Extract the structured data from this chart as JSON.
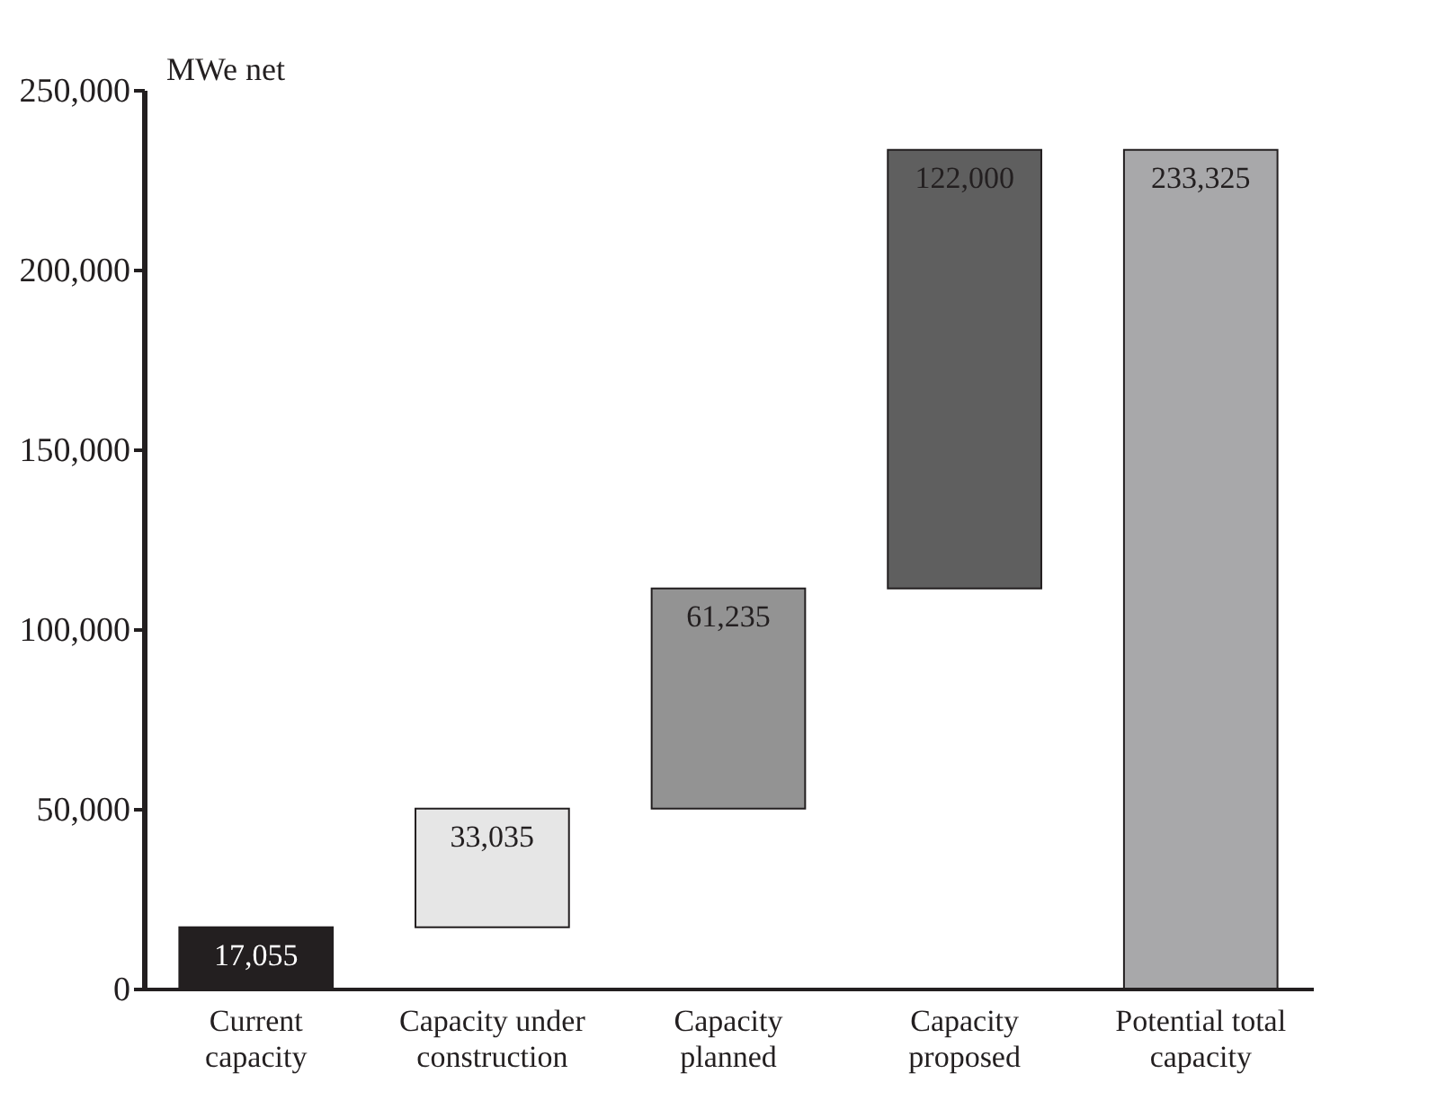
{
  "chart_data": {
    "type": "bar",
    "ylabel": "MWe net",
    "categories": [
      "Current capacity",
      "Capacity under construction",
      "Capacity planned",
      "Capacity proposed",
      "Potential total capacity"
    ],
    "values": [
      17055,
      33035,
      61235,
      122000,
      233325
    ],
    "base": [
      0,
      17055,
      50090,
      111325,
      0
    ],
    "colors": [
      "#231f20",
      "#e6e6e6",
      "#939393",
      "#5f5f5f",
      "#a8a8aa"
    ],
    "value_labels": [
      "17,055",
      "33,035",
      "61,235",
      "122,000",
      "233,325"
    ],
    "ylim": [
      0,
      250000
    ],
    "yticks": [
      0,
      {
        "value": 50000,
        "label": "50,000"
      },
      {
        "value": 100000,
        "label": "100,000"
      },
      {
        "value": 150000,
        "label": "150,000"
      },
      {
        "value": 200000,
        "label": "200,000"
      },
      {
        "value": 250000,
        "label": "250,000"
      }
    ],
    "grid": false,
    "legend": false
  }
}
